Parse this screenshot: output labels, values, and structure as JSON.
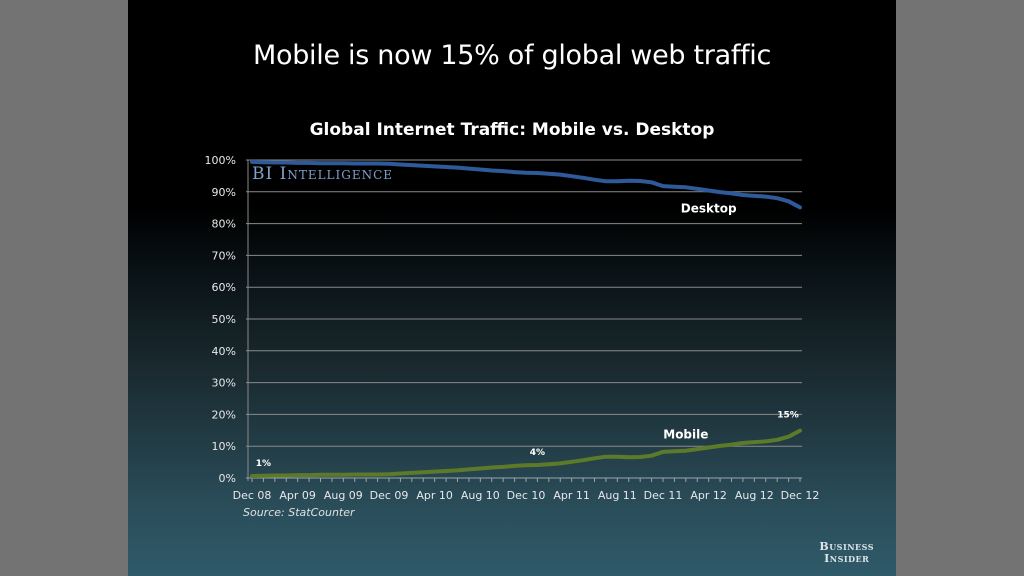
{
  "slide": {
    "headline": "Mobile is now 15% of global web traffic",
    "watermark": "BI Intelligence",
    "source": "Source: StatCounter",
    "brand_line1": "Business",
    "brand_line2": "Insider"
  },
  "chart_data": {
    "type": "line",
    "title": "Global Internet Traffic: Mobile vs. Desktop",
    "xlabel": "",
    "ylabel": "",
    "ylim": [
      0,
      100
    ],
    "y_ticks": [
      "0%",
      "10%",
      "20%",
      "30%",
      "40%",
      "50%",
      "60%",
      "70%",
      "80%",
      "90%",
      "100%"
    ],
    "x_tick_labels": [
      "Dec 08",
      "Apr 09",
      "Aug 09",
      "Dec 09",
      "Apr 10",
      "Aug 10",
      "Dec 10",
      "Apr 11",
      "Aug 11",
      "Dec 11",
      "Apr 12",
      "Aug 12",
      "Dec 12"
    ],
    "x_ticks_monthly_count": 49,
    "grid": true,
    "series": [
      {
        "name": "Desktop",
        "color": "#2f5a9a",
        "label": "Desktop",
        "values": [
          99.4,
          99.3,
          99.2,
          99.2,
          99.1,
          99.1,
          99.0,
          99.0,
          99.0,
          98.9,
          98.9,
          98.9,
          98.8,
          98.6,
          98.4,
          98.2,
          98.0,
          97.8,
          97.6,
          97.3,
          97.0,
          96.7,
          96.5,
          96.2,
          96.0,
          95.9,
          95.7,
          95.4,
          94.9,
          94.4,
          93.8,
          93.3,
          93.3,
          93.5,
          93.4,
          93.0,
          91.8,
          91.6,
          91.4,
          90.9,
          90.4,
          89.9,
          89.5,
          89.0,
          88.7,
          88.5,
          88.0,
          87.0,
          85.1
        ]
      },
      {
        "name": "Mobile",
        "color": "#5c7a2a",
        "label": "Mobile",
        "values": [
          0.6,
          0.7,
          0.8,
          0.8,
          0.9,
          0.9,
          1.0,
          1.0,
          1.0,
          1.1,
          1.1,
          1.1,
          1.2,
          1.4,
          1.6,
          1.8,
          2.0,
          2.2,
          2.4,
          2.7,
          3.0,
          3.3,
          3.5,
          3.8,
          4.0,
          4.1,
          4.3,
          4.6,
          5.1,
          5.6,
          6.2,
          6.7,
          6.7,
          6.5,
          6.6,
          7.0,
          8.2,
          8.4,
          8.6,
          9.1,
          9.6,
          10.1,
          10.5,
          11.0,
          11.3,
          11.5,
          12.0,
          13.0,
          14.9
        ]
      }
    ],
    "annotations": [
      {
        "series": "Mobile",
        "text": "1%",
        "index": 0
      },
      {
        "series": "Mobile",
        "text": "4%",
        "index": 25
      },
      {
        "series": "Mobile",
        "text": "15%",
        "index": 48
      }
    ]
  }
}
